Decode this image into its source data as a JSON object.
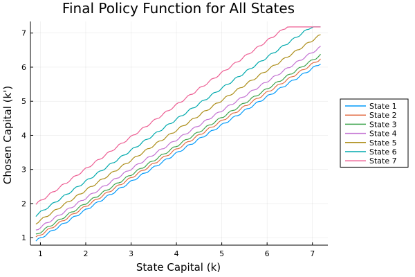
{
  "chart_data": {
    "type": "line",
    "title": "Final Policy Function for All States",
    "xlabel": "State Capital (k)",
    "ylabel": "Chosen Capital (k')",
    "xlim": [
      0.78,
      7.34
    ],
    "ylim": [
      0.78,
      7.34
    ],
    "xticks": [
      1,
      2,
      3,
      4,
      5,
      6,
      7
    ],
    "yticks": [
      1,
      2,
      3,
      4,
      5,
      6,
      7
    ],
    "grid": true,
    "legend_position": "outer-right",
    "x_range": [
      0.9,
      7.18
    ],
    "series": [
      {
        "name": "State 1",
        "color": "#009AFA",
        "start": 0.9,
        "slope": 0.83,
        "cap": 7.18
      },
      {
        "name": "State 2",
        "color": "#E36F47",
        "start": 1.0,
        "slope": 0.835,
        "cap": 7.18
      },
      {
        "name": "State 3",
        "color": "#3EA44E",
        "start": 1.08,
        "slope": 0.84,
        "cap": 7.18
      },
      {
        "name": "State 4",
        "color": "#C371D2",
        "start": 1.22,
        "slope": 0.855,
        "cap": 7.18
      },
      {
        "name": "State 5",
        "color": "#AC8D18",
        "start": 1.42,
        "slope": 0.88,
        "cap": 7.18
      },
      {
        "name": "State 6",
        "color": "#00A9AD",
        "start": 1.65,
        "slope": 0.91,
        "cap": 7.18
      },
      {
        "name": "State 7",
        "color": "#ED5E93",
        "start": 1.98,
        "slope": 0.94,
        "cap": 7.18
      }
    ]
  }
}
